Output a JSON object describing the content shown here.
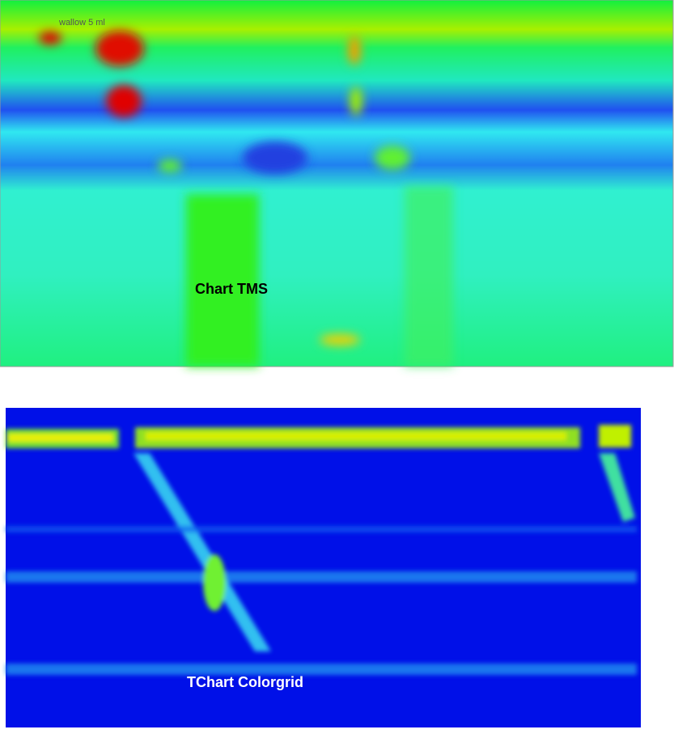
{
  "top_panel": {
    "annotation": "wallow 5 ml",
    "caption": "Chart TMS"
  },
  "bottom_panel": {
    "caption": "TChart Colorgrid"
  }
}
